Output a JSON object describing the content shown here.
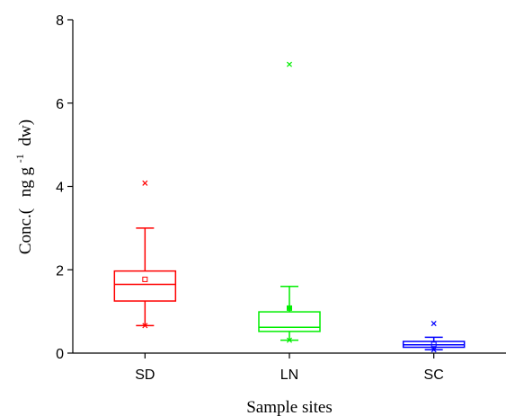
{
  "chart_data": {
    "type": "box",
    "xlabel": "Sample sites",
    "ylabel": {
      "prefix": "Conc.(",
      "unit_main": "ng g",
      "superscript": "-1",
      "unit_suffix": "dw)"
    },
    "ylim": [
      0,
      8
    ],
    "yticks": [
      0,
      2,
      4,
      6,
      8
    ],
    "ytick_labels": [
      "0",
      "2",
      "4",
      "6",
      "8"
    ],
    "grid": false,
    "legend": "none",
    "categories": [
      "SD",
      "LN",
      "SC"
    ],
    "boxes": [
      {
        "category": "SD",
        "color": "#ff0000",
        "q1": 1.25,
        "median": 1.65,
        "q3": 1.97,
        "whisker_low": 0.66,
        "whisker_high": 3.0,
        "mean": 1.77,
        "min_marker": 0.66,
        "max_marker": 4.08,
        "outliers": []
      },
      {
        "category": "LN",
        "color": "#00ee00",
        "q1": 0.52,
        "median": 0.62,
        "q3": 0.99,
        "whisker_low": 0.31,
        "whisker_high": 1.6,
        "mean": 1.08,
        "min_marker": 0.31,
        "max_marker": 6.93,
        "outliers": [
          1.08
        ]
      },
      {
        "category": "SC",
        "color": "#0000ff",
        "q1": 0.14,
        "median": 0.2,
        "q3": 0.28,
        "whisker_low": 0.08,
        "whisker_high": 0.38,
        "mean": 0.21,
        "min_marker": 0.08,
        "max_marker": 0.71,
        "outliers": []
      }
    ]
  }
}
